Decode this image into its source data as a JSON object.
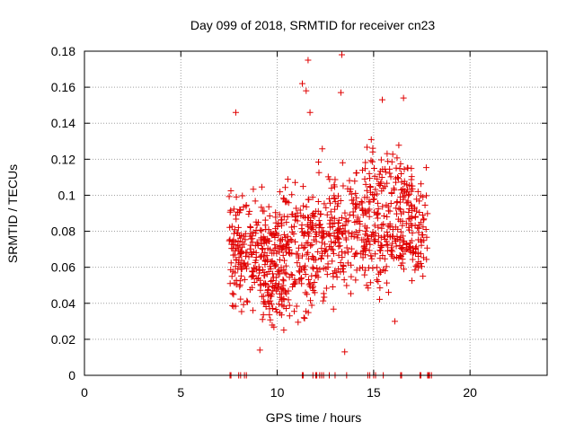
{
  "chart_data": {
    "type": "scatter",
    "title": "Day 099 of 2018, SRMTID for receiver cn23",
    "xlabel": "GPS time / hours",
    "ylabel": "SRMTID / TECUs",
    "xlim": [
      0,
      24
    ],
    "ylim": [
      0,
      0.18
    ],
    "x_ticks": [
      0,
      5,
      10,
      15,
      20
    ],
    "x_tick_labels": [
      "0",
      "5",
      "10",
      "15",
      "20"
    ],
    "y_ticks": [
      0,
      0.02,
      0.04,
      0.06,
      0.08,
      0.1,
      0.12,
      0.14,
      0.16,
      0.18
    ],
    "y_tick_labels": [
      "0",
      "0.02",
      "0.04",
      "0.06",
      "0.08",
      "0.1",
      "0.12",
      "0.14",
      "0.16",
      "0.18"
    ],
    "grid": true,
    "marker": "plus",
    "series_color": "#e00000",
    "point_density_note": "approx. 1000 points; representative sample reproduced",
    "notable_points": [
      {
        "x": 7.85,
        "y": 0.146
      },
      {
        "x": 11.6,
        "y": 0.175
      },
      {
        "x": 13.35,
        "y": 0.178
      },
      {
        "x": 11.3,
        "y": 0.162
      },
      {
        "x": 13.3,
        "y": 0.157
      },
      {
        "x": 11.5,
        "y": 0.158
      },
      {
        "x": 15.45,
        "y": 0.153
      },
      {
        "x": 16.55,
        "y": 0.154
      },
      {
        "x": 11.7,
        "y": 0.146
      },
      {
        "x": 9.1,
        "y": 0.014
      },
      {
        "x": 13.5,
        "y": 0.013
      },
      {
        "x": 16.1,
        "y": 0.03
      }
    ],
    "clusters": [
      {
        "x_range": [
          7.5,
          12.0
        ],
        "y_center": 0.07,
        "y_spread": 0.028,
        "count": 420
      },
      {
        "x_range": [
          12.0,
          17.8
        ],
        "y_center": 0.08,
        "y_spread": 0.026,
        "count": 480
      },
      {
        "x_range": [
          9.0,
          10.5
        ],
        "y_center": 0.045,
        "y_spread": 0.012,
        "count": 60
      },
      {
        "x_range": [
          14.5,
          17.0
        ],
        "y_center": 0.11,
        "y_spread": 0.015,
        "count": 60
      }
    ],
    "zero_values_x": [
      7.55,
      7.6,
      8.0,
      8.1,
      8.3,
      8.4,
      11.3,
      11.35,
      11.85,
      12.0,
      12.05,
      12.2,
      12.3,
      12.4,
      12.7,
      13.0,
      13.6,
      14.7,
      14.8,
      15.0,
      15.1,
      15.5,
      16.4,
      16.45,
      17.4,
      17.45,
      17.8,
      17.85,
      17.9,
      18.0
    ]
  }
}
